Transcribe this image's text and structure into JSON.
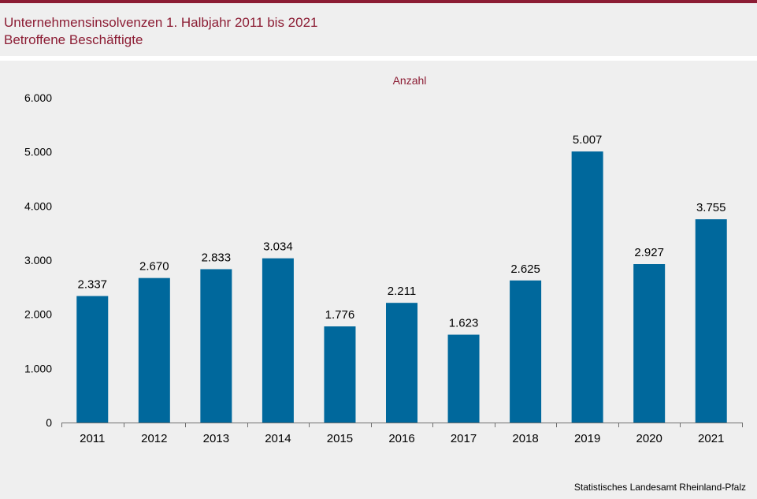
{
  "header": {
    "title": "Unternehmensinsolvenzen 1. Halbjahr 2011 bis 2021",
    "subtitle": "Betroffene Beschäftigte"
  },
  "source": "Statistisches Landesamt Rheinland-Pfalz",
  "colors": {
    "accent": "#8c1d34",
    "bar": "#00689c",
    "background": "#efefef"
  },
  "chart_data": {
    "type": "bar",
    "title": "Unternehmensinsolvenzen 1. Halbjahr 2011 bis 2021",
    "subtitle": "Betroffene Beschäftigte",
    "unit_label": "Anzahl",
    "xlabel": "",
    "ylabel": "",
    "categories": [
      "2011",
      "2012",
      "2013",
      "2014",
      "2015",
      "2016",
      "2017",
      "2018",
      "2019",
      "2020",
      "2021"
    ],
    "values": [
      2337,
      2670,
      2833,
      3034,
      1776,
      2211,
      1623,
      2625,
      5007,
      2927,
      3755
    ],
    "value_labels": [
      "2.337",
      "2.670",
      "2.833",
      "3.034",
      "1.776",
      "2.211",
      "1.623",
      "2.625",
      "5.007",
      "2.927",
      "3.755"
    ],
    "ylim": [
      0,
      6000
    ],
    "yticks": [
      0,
      1000,
      2000,
      3000,
      4000,
      5000,
      6000
    ],
    "ytick_labels": [
      "0",
      "1.000",
      "2.000",
      "3.000",
      "4.000",
      "5.000",
      "6.000"
    ],
    "grid": false,
    "legend": "none"
  }
}
